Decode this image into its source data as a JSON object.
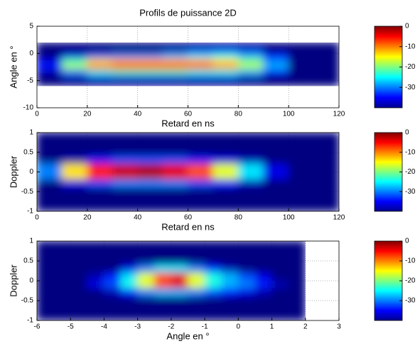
{
  "chart_data": [
    {
      "type": "heatmap",
      "title": "Profils de puissance 2D",
      "x_label": "Retard en ns",
      "y_label": "Angle en °",
      "xlim": [
        0,
        120
      ],
      "ylim": [
        -10,
        5
      ],
      "xticks": [
        0,
        20,
        40,
        60,
        80,
        100,
        120
      ],
      "yticks": [
        -10,
        -5,
        0,
        5
      ],
      "grid": true,
      "x_edges": [
        0,
        10,
        20,
        30,
        40,
        50,
        60,
        70,
        80,
        90,
        100,
        110,
        120
      ],
      "y_edges": [
        2,
        1,
        0,
        -1,
        -2,
        -3,
        -4,
        -5,
        -6
      ],
      "z": [
        [
          -40,
          -40,
          -40,
          -40,
          -40,
          -40,
          -40,
          -40,
          -40,
          -40,
          -40,
          -40
        ],
        [
          -40,
          -40,
          -40,
          -40,
          -40,
          -38,
          -36,
          -34,
          -36,
          -40,
          -40,
          -40
        ],
        [
          -40,
          -36,
          -32,
          -30,
          -30,
          -28,
          -26,
          -24,
          -28,
          -34,
          -40,
          -40
        ],
        [
          -36,
          -22,
          -14,
          -12,
          -12,
          -12,
          -12,
          -14,
          -20,
          -30,
          -40,
          -40
        ],
        [
          -34,
          -18,
          -8,
          -6,
          -6,
          -6,
          -6,
          -10,
          -18,
          -28,
          -40,
          -40
        ],
        [
          -38,
          -30,
          -24,
          -22,
          -22,
          -22,
          -24,
          -24,
          -28,
          -34,
          -40,
          -40
        ],
        [
          -40,
          -38,
          -36,
          -36,
          -36,
          -36,
          -36,
          -36,
          -38,
          -40,
          -40,
          -40
        ],
        [
          -40,
          -40,
          -40,
          -40,
          -40,
          -40,
          -40,
          -40,
          -40,
          -40,
          -40,
          -40
        ]
      ],
      "colorbar": {
        "clim": [
          -40,
          0
        ],
        "ticks": [
          0,
          -10,
          -20,
          -30
        ]
      }
    },
    {
      "type": "heatmap",
      "x_label": "Retard en ns",
      "y_label": "Doppler",
      "xlim": [
        0,
        120
      ],
      "ylim": [
        -1,
        1
      ],
      "xticks": [
        0,
        20,
        40,
        60,
        80,
        100,
        120
      ],
      "yticks": [
        -1,
        -0.5,
        0,
        0.5,
        1
      ],
      "grid": true,
      "x_edges": [
        0,
        10,
        20,
        30,
        40,
        50,
        60,
        70,
        80,
        90,
        100,
        110,
        120
      ],
      "y_edges": [
        1,
        0.8,
        0.6,
        0.4,
        0.2,
        0,
        -0.2,
        -0.4,
        -0.6,
        -0.8,
        -1
      ],
      "z": [
        [
          -40,
          -40,
          -40,
          -40,
          -40,
          -40,
          -40,
          -40,
          -40,
          -40,
          -40,
          -40
        ],
        [
          -40,
          -40,
          -40,
          -40,
          -40,
          -40,
          -40,
          -40,
          -40,
          -40,
          -40,
          -40
        ],
        [
          -40,
          -40,
          -40,
          -40,
          -40,
          -40,
          -40,
          -40,
          -40,
          -40,
          -40,
          -40
        ],
        [
          -40,
          -38,
          -34,
          -32,
          -32,
          -32,
          -34,
          -36,
          -38,
          -40,
          -40,
          -40
        ],
        [
          -30,
          -14,
          -6,
          -3,
          -2,
          -4,
          -8,
          -16,
          -26,
          -36,
          -40,
          -40
        ],
        [
          -30,
          -14,
          -6,
          -3,
          -2,
          -4,
          -8,
          -16,
          -26,
          -36,
          -40,
          -40
        ],
        [
          -40,
          -36,
          -32,
          -30,
          -30,
          -30,
          -32,
          -34,
          -38,
          -40,
          -40,
          -40
        ],
        [
          -40,
          -40,
          -40,
          -40,
          -40,
          -40,
          -40,
          -40,
          -40,
          -40,
          -40,
          -40
        ],
        [
          -40,
          -40,
          -40,
          -40,
          -40,
          -40,
          -40,
          -40,
          -40,
          -40,
          -40,
          -40
        ],
        [
          -40,
          -40,
          -40,
          -40,
          -40,
          -40,
          -40,
          -40,
          -40,
          -40,
          -40,
          -40
        ]
      ],
      "colorbar": {
        "clim": [
          -40,
          0
        ],
        "ticks": [
          0,
          -10,
          -20,
          -30
        ]
      }
    },
    {
      "type": "heatmap",
      "x_label": "Angle en °",
      "y_label": "Doppler",
      "xlim": [
        -6,
        3
      ],
      "ylim": [
        -1,
        1
      ],
      "xticks": [
        -6,
        -5,
        -4,
        -3,
        -2,
        -1,
        0,
        1,
        2,
        3
      ],
      "yticks": [
        -1,
        -0.5,
        0,
        0.5,
        1
      ],
      "grid": true,
      "x_edges": [
        -6,
        -5.5,
        -5,
        -4.5,
        -4,
        -3.5,
        -3,
        -2.5,
        -2,
        -1.5,
        -1,
        -0.5,
        0,
        0.5,
        1,
        1.5,
        2
      ],
      "y_edges": [
        1,
        0.8,
        0.6,
        0.4,
        0.2,
        0,
        -0.2,
        -0.4,
        -0.6,
        -0.8,
        -1
      ],
      "z": [
        [
          -40,
          -40,
          -40,
          -40,
          -40,
          -40,
          -40,
          -40,
          -40,
          -40,
          -40,
          -40,
          -40,
          -40,
          -40,
          -40
        ],
        [
          -40,
          -40,
          -40,
          -40,
          -40,
          -40,
          -40,
          -40,
          -40,
          -40,
          -40,
          -40,
          -40,
          -40,
          -40,
          -40
        ],
        [
          -40,
          -40,
          -40,
          -40,
          -40,
          -40,
          -40,
          -40,
          -40,
          -40,
          -40,
          -40,
          -40,
          -40,
          -40,
          -40
        ],
        [
          -40,
          -40,
          -40,
          -40,
          -40,
          -36,
          -30,
          -26,
          -26,
          -30,
          -34,
          -38,
          -40,
          -40,
          -40,
          -40
        ],
        [
          -40,
          -40,
          -40,
          -38,
          -34,
          -26,
          -16,
          -8,
          -4,
          -16,
          -24,
          -28,
          -32,
          -36,
          -40,
          -40
        ],
        [
          -40,
          -40,
          -40,
          -36,
          -32,
          -24,
          -16,
          -8,
          -4,
          -16,
          -24,
          -28,
          -30,
          -34,
          -38,
          -40
        ],
        [
          -40,
          -40,
          -40,
          -40,
          -38,
          -34,
          -30,
          -28,
          -28,
          -30,
          -32,
          -34,
          -36,
          -38,
          -40,
          -40
        ],
        [
          -40,
          -40,
          -40,
          -40,
          -40,
          -40,
          -40,
          -40,
          -40,
          -40,
          -40,
          -40,
          -40,
          -40,
          -40,
          -40
        ],
        [
          -40,
          -40,
          -40,
          -40,
          -40,
          -40,
          -40,
          -40,
          -40,
          -40,
          -40,
          -40,
          -40,
          -40,
          -40,
          -40
        ],
        [
          -40,
          -40,
          -40,
          -40,
          -40,
          -40,
          -40,
          -40,
          -40,
          -40,
          -40,
          -40,
          -40,
          -40,
          -40,
          -40
        ]
      ],
      "colorbar": {
        "clim": [
          -40,
          0
        ],
        "ticks": [
          0,
          -10,
          -20,
          -30
        ]
      }
    }
  ]
}
